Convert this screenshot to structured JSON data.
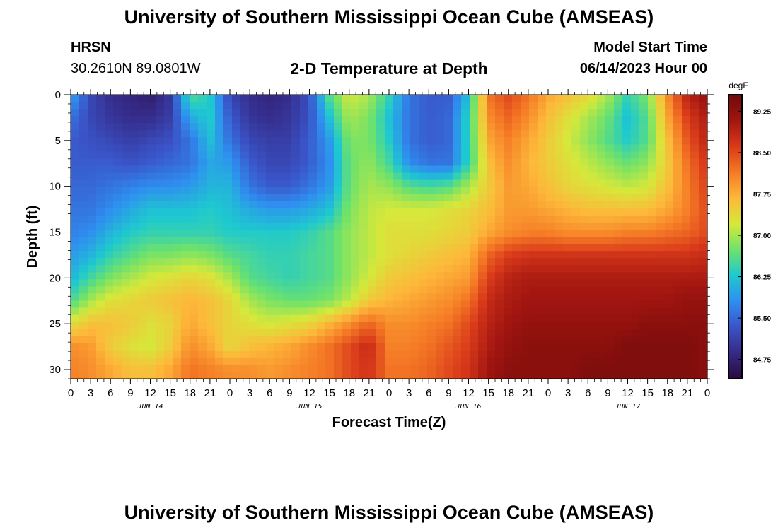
{
  "header": {
    "title": "University of Southern Mississippi Ocean Cube (AMSEAS)",
    "station": "HRSN",
    "coords": "30.2610N  89.0801W",
    "subtitle": "2-D Temperature at Depth",
    "start_label": "Model Start Time",
    "start_value": "06/14/2023 Hour 00"
  },
  "footer": {
    "title": "University of Southern Mississippi Ocean Cube (AMSEAS)"
  },
  "chart_data": {
    "type": "heatmap",
    "xlabel": "Forecast Time(Z)",
    "ylabel": "Depth (ft)",
    "colorbar_unit": "degF",
    "x_hours": [
      0,
      3,
      6,
      9,
      12,
      15,
      18,
      21,
      24,
      27,
      30,
      33,
      36,
      39,
      42,
      45,
      48,
      51,
      54,
      57,
      60,
      63,
      66,
      69,
      72,
      75,
      78,
      81,
      84,
      87,
      90,
      93,
      96
    ],
    "x_tick_labels": [
      "0",
      "3",
      "6",
      "9",
      "12",
      "15",
      "18",
      "21",
      "0",
      "3",
      "6",
      "9",
      "12",
      "15",
      "18",
      "21",
      "0",
      "3",
      "6",
      "9",
      "12",
      "15",
      "18",
      "21",
      "0",
      "3",
      "6",
      "9",
      "12",
      "15",
      "18",
      "21",
      "0"
    ],
    "day_labels": [
      {
        "label": "JUN 14",
        "hour": 12
      },
      {
        "label": "JUN 15",
        "hour": 36
      },
      {
        "label": "JUN 16",
        "hour": 60
      },
      {
        "label": "JUN 17",
        "hour": 84
      }
    ],
    "y_ticks": [
      0,
      5,
      10,
      15,
      20,
      25,
      30
    ],
    "ylim": [
      0,
      31
    ],
    "xlim": [
      0,
      96
    ],
    "depths": [
      0,
      2.5,
      5,
      7.5,
      10,
      12.5,
      15,
      17.5,
      20,
      22.5,
      25,
      27.5,
      30
    ],
    "colorbar": {
      "ticks": [
        84.75,
        85.5,
        86.25,
        87.0,
        87.75,
        88.5,
        89.25
      ],
      "tick_labels": [
        "84.75",
        "85.50",
        "86.25",
        "87.00",
        "87.75",
        "88.50",
        "89.25"
      ],
      "min": 84.4,
      "max": 89.55,
      "colors": [
        "#2a0a3c",
        "#352a87",
        "#3a54c8",
        "#2f8ef0",
        "#1ec9cf",
        "#6fe26a",
        "#d6e83a",
        "#fdb83a",
        "#f57a25",
        "#d93a1a",
        "#a21510",
        "#6f0a0a"
      ]
    },
    "temperature": [
      [
        86.0,
        85.2,
        84.9,
        84.8,
        84.7,
        85.0,
        86.6,
        86.3,
        85.2,
        84.9,
        84.8,
        84.9,
        85.3,
        86.6,
        87.2,
        87.0,
        86.4,
        85.6,
        85.4,
        85.4,
        86.2,
        88.2,
        88.5,
        88.2,
        87.8,
        87.6,
        87.4,
        87.0,
        86.4,
        86.8,
        88.0,
        88.9,
        89.2
      ],
      [
        85.6,
        85.2,
        85.0,
        84.9,
        84.9,
        85.1,
        86.0,
        86.3,
        85.4,
        85.0,
        84.9,
        85.0,
        85.3,
        86.2,
        87.0,
        86.8,
        86.2,
        85.6,
        85.4,
        85.5,
        86.4,
        88.0,
        88.3,
        88.0,
        87.6,
        87.3,
        87.0,
        86.7,
        86.2,
        86.6,
        87.8,
        88.6,
        89.0
      ],
      [
        85.4,
        85.3,
        85.2,
        85.1,
        85.2,
        85.3,
        85.6,
        86.2,
        85.6,
        85.2,
        85.1,
        85.1,
        85.4,
        85.9,
        86.8,
        86.8,
        86.3,
        85.6,
        85.4,
        85.5,
        86.4,
        87.8,
        88.1,
        87.8,
        87.5,
        87.2,
        86.9,
        86.6,
        86.3,
        86.6,
        87.6,
        88.4,
        88.9
      ],
      [
        85.4,
        85.4,
        85.4,
        85.3,
        85.4,
        85.5,
        85.6,
        86.0,
        85.9,
        85.4,
        85.2,
        85.2,
        85.4,
        85.8,
        86.7,
        86.9,
        86.5,
        85.8,
        85.6,
        85.6,
        86.4,
        87.6,
        88.0,
        87.7,
        87.5,
        87.3,
        87.1,
        86.9,
        86.7,
        86.9,
        87.5,
        88.2,
        88.7
      ],
      [
        85.5,
        85.5,
        85.6,
        85.7,
        85.8,
        85.8,
        85.9,
        86.1,
        86.1,
        85.6,
        85.4,
        85.4,
        85.6,
        85.9,
        86.7,
        87.0,
        86.9,
        86.6,
        86.5,
        86.6,
        87.0,
        87.5,
        87.9,
        87.8,
        87.6,
        87.4,
        87.3,
        87.2,
        87.1,
        87.2,
        87.6,
        88.1,
        88.6
      ],
      [
        85.6,
        85.6,
        85.8,
        86.0,
        86.2,
        86.2,
        86.2,
        86.3,
        86.2,
        86.0,
        85.9,
        85.9,
        86.0,
        86.2,
        86.8,
        87.1,
        87.2,
        87.2,
        87.2,
        87.3,
        87.4,
        87.6,
        87.9,
        87.9,
        87.8,
        87.7,
        87.6,
        87.6,
        87.6,
        87.6,
        87.8,
        88.1,
        88.5
      ],
      [
        85.7,
        85.8,
        86.1,
        86.3,
        86.4,
        86.4,
        86.4,
        86.4,
        86.3,
        86.3,
        86.3,
        86.3,
        86.4,
        86.6,
        86.9,
        87.1,
        87.3,
        87.3,
        87.3,
        87.4,
        87.5,
        87.8,
        88.0,
        88.1,
        88.1,
        88.0,
        88.0,
        88.0,
        88.1,
        88.1,
        88.2,
        88.3,
        88.5
      ],
      [
        85.9,
        86.1,
        86.4,
        86.6,
        86.8,
        86.8,
        86.9,
        86.8,
        86.6,
        86.5,
        86.4,
        86.4,
        86.5,
        86.6,
        86.9,
        87.1,
        87.3,
        87.4,
        87.5,
        87.6,
        87.7,
        88.3,
        88.6,
        88.7,
        88.7,
        88.7,
        88.7,
        88.7,
        88.7,
        88.7,
        88.7,
        88.7,
        88.8
      ],
      [
        86.1,
        86.5,
        86.8,
        87.0,
        87.2,
        87.3,
        87.4,
        87.3,
        87.0,
        86.6,
        86.5,
        86.4,
        86.5,
        86.6,
        86.9,
        87.2,
        87.5,
        87.6,
        87.7,
        87.8,
        87.9,
        88.6,
        88.9,
        89.0,
        89.0,
        89.0,
        89.0,
        89.0,
        89.0,
        89.0,
        89.0,
        89.0,
        89.0
      ],
      [
        86.5,
        87.0,
        87.3,
        87.4,
        87.5,
        87.6,
        87.7,
        87.6,
        87.4,
        87.0,
        86.8,
        86.7,
        86.7,
        86.8,
        87.1,
        87.5,
        87.7,
        87.8,
        87.9,
        88.0,
        88.2,
        88.8,
        89.0,
        89.1,
        89.1,
        89.1,
        89.1,
        89.1,
        89.1,
        89.1,
        89.1,
        89.2,
        89.2
      ],
      [
        87.3,
        87.6,
        87.6,
        87.5,
        87.3,
        87.4,
        87.8,
        87.6,
        87.4,
        87.3,
        87.2,
        87.3,
        87.4,
        87.7,
        88.0,
        88.3,
        88.0,
        88.0,
        88.1,
        88.2,
        88.5,
        88.9,
        89.1,
        89.2,
        89.2,
        89.2,
        89.2,
        89.2,
        89.2,
        89.3,
        89.3,
        89.3,
        89.3
      ],
      [
        88.0,
        87.9,
        87.5,
        87.3,
        87.2,
        87.5,
        88.0,
        87.8,
        87.4,
        87.6,
        87.7,
        87.8,
        88.0,
        88.2,
        88.5,
        88.8,
        88.1,
        88.1,
        88.2,
        88.4,
        88.6,
        89.0,
        89.2,
        89.3,
        89.3,
        89.3,
        89.3,
        89.3,
        89.4,
        89.4,
        89.4,
        89.4,
        89.3
      ],
      [
        88.1,
        88.0,
        87.8,
        87.6,
        87.6,
        87.8,
        88.2,
        88.1,
        88.0,
        88.0,
        87.9,
        88.0,
        88.1,
        88.2,
        88.5,
        88.7,
        88.2,
        88.2,
        88.3,
        88.5,
        88.7,
        89.1,
        89.3,
        89.3,
        89.3,
        89.3,
        89.4,
        89.4,
        89.4,
        89.4,
        89.4,
        89.4,
        89.3
      ]
    ]
  }
}
